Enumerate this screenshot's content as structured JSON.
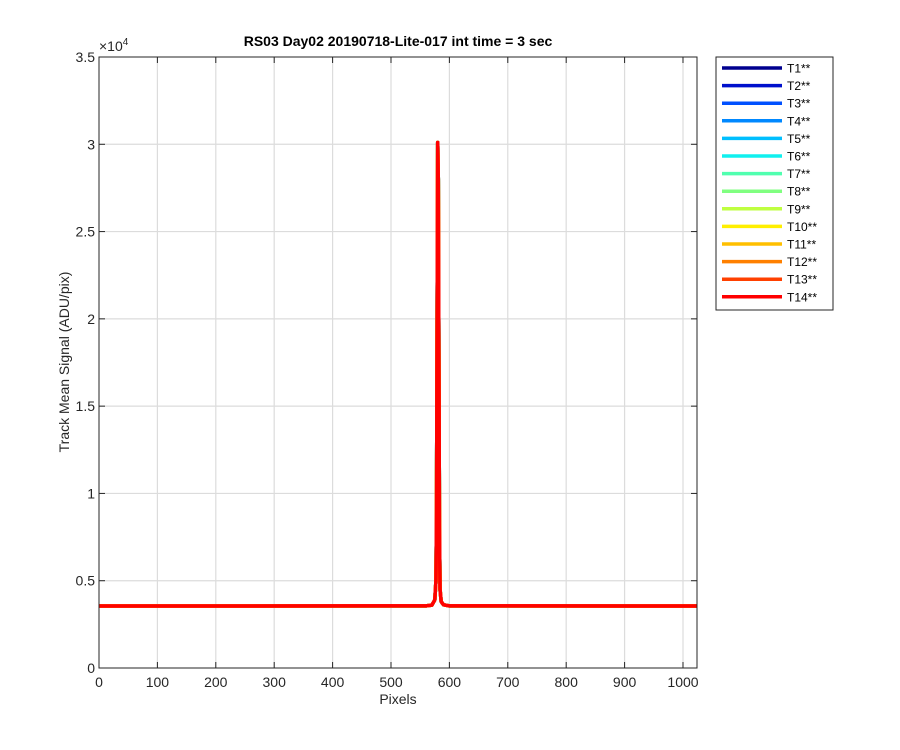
{
  "chart_data": {
    "type": "line",
    "title": "RS03 Day02 20190718-Lite-017 int time = 3 sec",
    "xlabel": "Pixels",
    "ylabel": "Track Mean Signal (ADU/pix)",
    "xlim": [
      0,
      1024
    ],
    "ylim": [
      0,
      35000
    ],
    "xticks": [
      0,
      100,
      200,
      300,
      400,
      500,
      600,
      700,
      800,
      900,
      1000
    ],
    "yticks": [
      0,
      5000,
      10000,
      15000,
      20000,
      25000,
      30000,
      35000
    ],
    "ytick_labels": [
      "0",
      "0.5",
      "1",
      "1.5",
      "2",
      "2.5",
      "3",
      "3.5"
    ],
    "y_exponent_label": "×10",
    "y_exponent": "4",
    "grid": true,
    "legend_position": "outside-top-right",
    "series": [
      {
        "name": "T1**",
        "color": "#00008f"
      },
      {
        "name": "T2**",
        "color": "#0010cc"
      },
      {
        "name": "T3**",
        "color": "#0050ff"
      },
      {
        "name": "T4**",
        "color": "#0088ff"
      },
      {
        "name": "T5**",
        "color": "#00bfff"
      },
      {
        "name": "T6**",
        "color": "#10f0ef"
      },
      {
        "name": "T7**",
        "color": "#50ffaf"
      },
      {
        "name": "T8**",
        "color": "#80ff80"
      },
      {
        "name": "T9**",
        "color": "#bfff40"
      },
      {
        "name": "T10**",
        "color": "#ffef00"
      },
      {
        "name": "T11**",
        "color": "#ffbf00"
      },
      {
        "name": "T12**",
        "color": "#ff8000"
      },
      {
        "name": "T13**",
        "color": "#ff4000"
      },
      {
        "name": "T14**",
        "color": "#ff0000"
      }
    ],
    "profile": {
      "x": [
        0,
        560,
        570,
        575,
        577,
        578,
        579,
        580,
        581,
        582,
        583,
        584,
        586,
        590,
        600,
        1024
      ],
      "y": [
        3550,
        3560,
        3600,
        3900,
        5000,
        9000,
        20000,
        30100,
        28000,
        18000,
        8000,
        4500,
        3800,
        3620,
        3560,
        3550
      ]
    }
  }
}
